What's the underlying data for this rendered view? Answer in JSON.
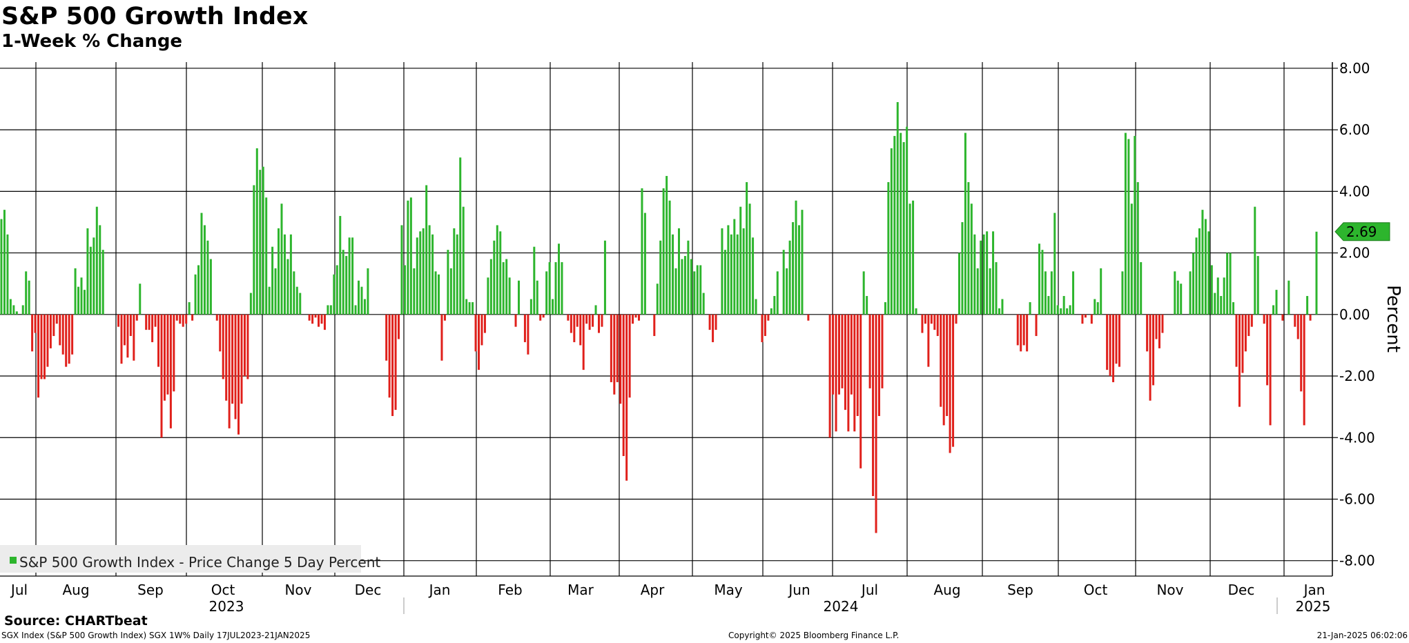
{
  "header": {
    "title": "S&P 500 Growth Index",
    "subtitle": "1-Week % Change"
  },
  "footer": {
    "source": "Source: CHARTbeat",
    "ticker_info": "SGX Index (S&P 500 Growth Index) SGX 1W%  Daily 17JUL2023-21JAN2025",
    "copyright": "Copyright© 2025 Bloomberg Finance L.P.",
    "timestamp": "21-Jan-2025 06:02:06"
  },
  "colors": {
    "positive": "#2db52d",
    "negative": "#e0201b",
    "grid": "#000000",
    "legend_bg": "#ececec",
    "last_value_bg": "#2db52d"
  },
  "chart_data": {
    "type": "bar",
    "ylabel": "Percent",
    "ylim": [
      -8.5,
      8.2
    ],
    "y_ticks": [
      "8.00",
      "6.00",
      "4.00",
      "2.00",
      "0.00",
      "-2.00",
      "-4.00",
      "-6.00",
      "-8.00"
    ],
    "y_tick_values": [
      8,
      6,
      4,
      2,
      0,
      -2,
      -4,
      -6,
      -8
    ],
    "grid": true,
    "legend": {
      "placement": "bottom-left",
      "entries": [
        "S&P 500 Growth Index - Price Change 5 Day Percent"
      ]
    },
    "last_value": 2.69,
    "last_value_label": "2.69",
    "month_labels": [
      "Jul",
      "Aug",
      "Sep",
      "Oct",
      "Nov",
      "Dec",
      "Jan",
      "Feb",
      "Mar",
      "Apr",
      "May",
      "Jun",
      "Jul",
      "Aug",
      "Sep",
      "Oct",
      "Nov",
      "Dec",
      "Jan"
    ],
    "year_labels": [
      "2023",
      "2024",
      "2025"
    ],
    "series": [
      {
        "values": [
          3.1,
          3.4,
          2.6,
          0.5,
          0.3,
          0.1,
          0,
          0.3,
          1.4,
          1.1,
          -1.2,
          -0.6,
          -2.7,
          -2.1,
          -2.1,
          -1.7,
          -1.1,
          -0.7,
          -0.3,
          -1.0,
          -1.3,
          -1.7,
          -1.6,
          -1.3,
          1.5,
          0.9,
          1.2,
          0.8,
          2.8,
          2.2,
          2.5,
          3.5,
          2.9,
          2.1,
          0,
          0,
          0,
          0,
          -0.4,
          -1.6,
          -1.0,
          -1.4,
          -0.7,
          -1.5,
          -0.2,
          1.0,
          0,
          -0.5,
          -0.5,
          -0.9,
          -0.4,
          -1.7,
          -4.0,
          -2.8,
          -2.6,
          -3.7,
          -2.5,
          -0.2,
          -0.3,
          -0.4,
          -0.3,
          0.4,
          -0.2,
          1.3,
          1.6,
          3.3,
          2.9,
          2.4,
          1.8,
          0,
          -0.2,
          -1.2,
          -2.1,
          -2.8,
          -3.7,
          -2.9,
          -3.4,
          -3.9,
          -2.9,
          -2.0,
          -2.1,
          0.7,
          4.2,
          5.4,
          4.7,
          4.8,
          3.8,
          0.9,
          2.2,
          1.5,
          2.8,
          3.6,
          2.6,
          1.8,
          2.6,
          1.4,
          0.9,
          0.7,
          0,
          0,
          -0.2,
          -0.3,
          -0.1,
          -0.4,
          -0.3,
          -0.5,
          0.3,
          0.3,
          1.3,
          1.6,
          3.2,
          2.1,
          1.9,
          2.5,
          2.5,
          0.3,
          1.1,
          0.9,
          0.5,
          1.5,
          0,
          0,
          0,
          0,
          0,
          -1.5,
          -2.7,
          -3.3,
          -3.1,
          -0.8,
          2.9,
          1.6,
          3.7,
          3.8,
          1.5,
          2.5,
          2.7,
          2.8,
          4.2,
          2.9,
          2.6,
          1.4,
          1.3,
          -1.5,
          -0.2,
          2.1,
          1.5,
          2.8,
          2.6,
          5.1,
          3.5,
          0.5,
          0.4,
          0.4,
          -1.2,
          -1.8,
          -1.0,
          -0.6,
          1.2,
          1.8,
          2.4,
          2.9,
          2.7,
          1.7,
          1.8,
          1.2,
          0,
          -0.4,
          1.1,
          0,
          -0.9,
          -1.3,
          0.5,
          2.2,
          1.1,
          -0.2,
          -0.1,
          1.4,
          1.7,
          0.5,
          1.7,
          2.3,
          1.7,
          0,
          -0.2,
          -0.6,
          -0.9,
          -0.4,
          -1.0,
          -1.8,
          -0.3,
          -0.5,
          -0.4,
          0.3,
          -0.6,
          -0.4,
          2.4,
          0,
          -2.2,
          -2.6,
          -2.2,
          -2.9,
          -4.6,
          -5.4,
          -2.7,
          -0.3,
          -0.1,
          -0.2,
          4.1,
          3.3,
          0,
          0,
          -0.7,
          1.0,
          2.4,
          4.1,
          4.5,
          3.7,
          2.6,
          1.5,
          2.8,
          1.8,
          1.9,
          2.4,
          1.8,
          1.4,
          1.6,
          1.6,
          0.7,
          0,
          -0.5,
          -0.9,
          -0.5,
          0,
          2.8,
          2.1,
          2.9,
          2.6,
          3.1,
          2.6,
          3.5,
          2.8,
          4.3,
          3.6,
          2.5,
          0.5,
          0,
          -0.9,
          -0.7,
          -0.2,
          0.2,
          0.6,
          1.4,
          0,
          2.1,
          1.5,
          2.4,
          3.0,
          3.7,
          2.9,
          3.4,
          0,
          -0.2,
          0,
          0,
          0,
          0,
          0,
          0,
          -4.0,
          -2.6,
          -3.8,
          -2.6,
          -2.4,
          -3.1,
          -3.8,
          -2.6,
          -3.8,
          -3.3,
          -5.0,
          1.4,
          0.6,
          -2.4,
          -5.9,
          -7.1,
          -3.3,
          -2.4,
          0.4,
          4.3,
          5.4,
          5.8,
          6.9,
          5.9,
          5.6,
          6.1,
          3.6,
          3.7,
          0.2,
          0,
          -0.6,
          -0.3,
          -1.7,
          -0.3,
          -0.5,
          -0.7,
          -3.0,
          -3.6,
          -3.3,
          -4.5,
          -4.3,
          -0.3,
          2.0,
          3.0,
          5.9,
          4.3,
          3.6,
          2.6,
          1.5,
          2.4,
          2.6,
          2.7,
          1.5,
          2.7,
          1.7,
          0.2,
          0.5,
          0,
          0,
          0,
          0,
          -1.0,
          -1.2,
          -1.0,
          -1.2,
          0.4,
          0,
          -0.7,
          2.3,
          2.1,
          1.4,
          0.6,
          1.4,
          3.3,
          0.3,
          0.2,
          0.6,
          0.2,
          0.3,
          1.4,
          0,
          0,
          -0.3,
          -0.1,
          0,
          -0.3,
          0.5,
          0.4,
          1.5,
          0,
          -1.8,
          -2.0,
          -2.2,
          -1.6,
          -1.7,
          1.4,
          5.9,
          5.7,
          3.6,
          5.8,
          4.3,
          1.7,
          0,
          -1.2,
          -2.8,
          -2.3,
          -0.8,
          -1.1,
          -0.6,
          0,
          0,
          0,
          1.4,
          1.1,
          1.0,
          0,
          0,
          1.4,
          2.0,
          2.5,
          2.8,
          3.4,
          3.1,
          2.7,
          1.6,
          0.7,
          1.2,
          0.6,
          1.2,
          2.0,
          2.0,
          0.4,
          -1.7,
          -3.0,
          -1.9,
          -1.2,
          -0.7,
          -0.4,
          3.5,
          1.9,
          0,
          -0.3,
          -2.3,
          -3.6,
          0.3,
          0.8,
          0,
          -0.2,
          0,
          1.1,
          0,
          -0.4,
          -0.8,
          -2.5,
          -3.6,
          0.6,
          -0.2,
          0,
          2.69
        ]
      }
    ]
  }
}
